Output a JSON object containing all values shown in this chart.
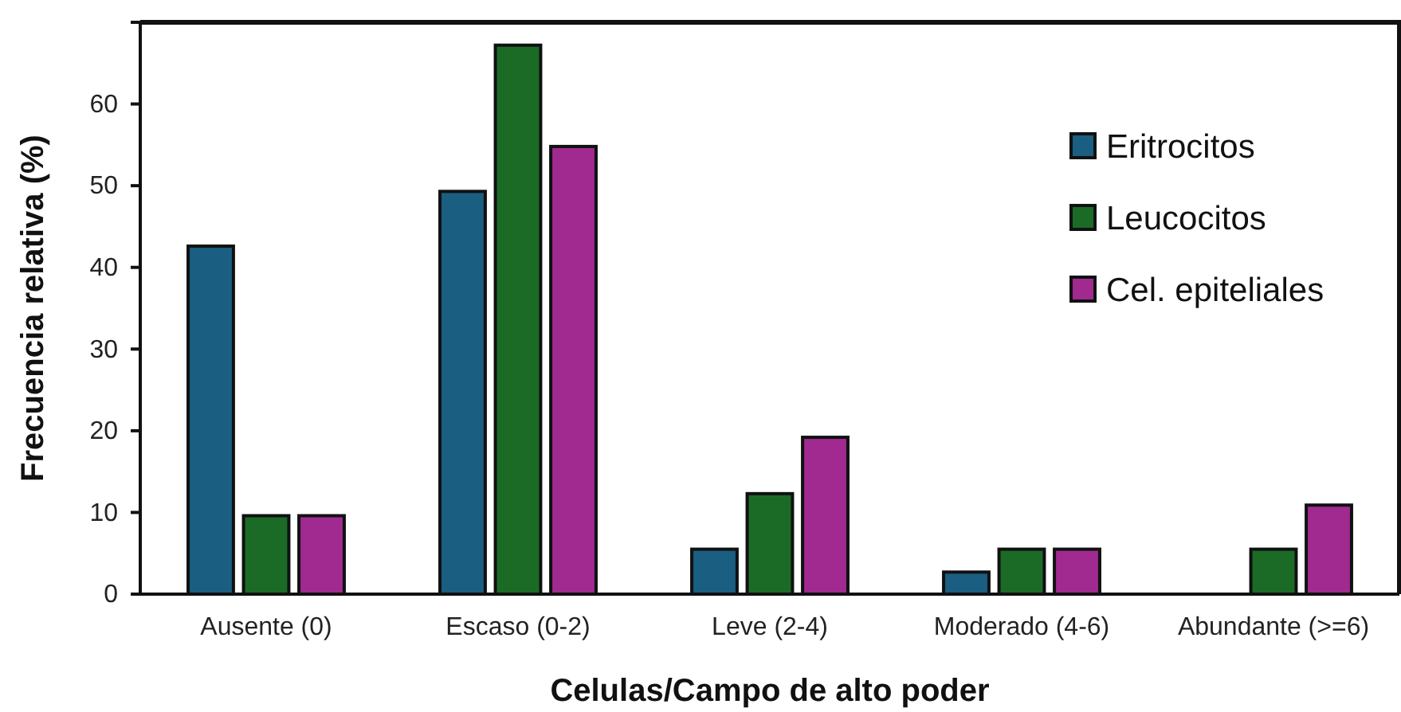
{
  "chart_data": {
    "type": "bar",
    "xlabel": "Celulas/Campo de alto poder",
    "ylabel": "Frecuencia relativa (%)",
    "categories": [
      "Ausente (0)",
      "Escaso (0-2)",
      "Leve (2-4)",
      "Moderado (4-6)",
      "Abundante (>=6)"
    ],
    "series": [
      {
        "name": "Eritrocitos",
        "color": "#1a5e82",
        "values": [
          42.6,
          49.3,
          5.5,
          2.7,
          0
        ]
      },
      {
        "name": "Leucocitos",
        "color": "#1b6b27",
        "values": [
          9.6,
          67.2,
          12.3,
          5.5,
          5.5
        ]
      },
      {
        "name": "Cel. epiteliales",
        "color": "#a02a8f",
        "values": [
          9.6,
          54.8,
          19.2,
          5.5,
          10.9
        ]
      }
    ],
    "ylim": [
      0,
      70
    ],
    "yticks": [
      0,
      10,
      20,
      30,
      40,
      50,
      60
    ],
    "legend": "top right",
    "grid": false
  }
}
